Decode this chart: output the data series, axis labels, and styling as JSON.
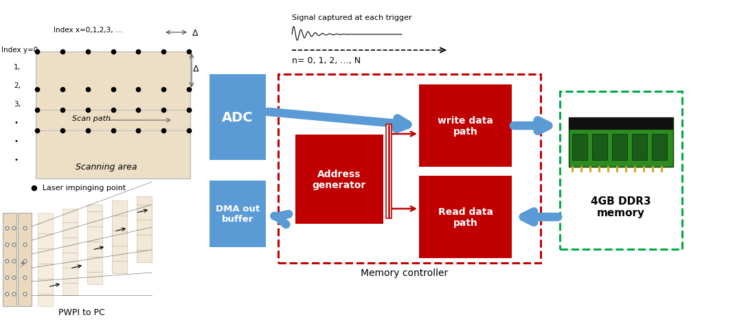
{
  "bg_color": "#ffffff",
  "blue_color": "#5B9BD5",
  "red_color": "#C00000",
  "green_dash_color": "#00AA44",
  "red_dash_color": "#C00000",
  "scan_area_color": "#EAD9BC",
  "adc_label": "ADC",
  "write_label": "write data\npath",
  "read_label": "Read data\npath",
  "addr_label": "Address\ngenerator",
  "dma_label": "DMA out\nbuffer",
  "memory_label": "4GB DDR3\nmemory",
  "mc_label": "Memory controller",
  "signal_label": "Signal captured at each trigger",
  "n_label": "n= 0, 1, 2, …, N",
  "index_x_label": "Index x=0,1,2,3, …",
  "scan_path_label": "Scan path",
  "scanning_area_label": "Scanning area",
  "laser_label": "●  Laser impinging point",
  "pwpi_label": "PWPI to PC",
  "delta_label": "Δ"
}
